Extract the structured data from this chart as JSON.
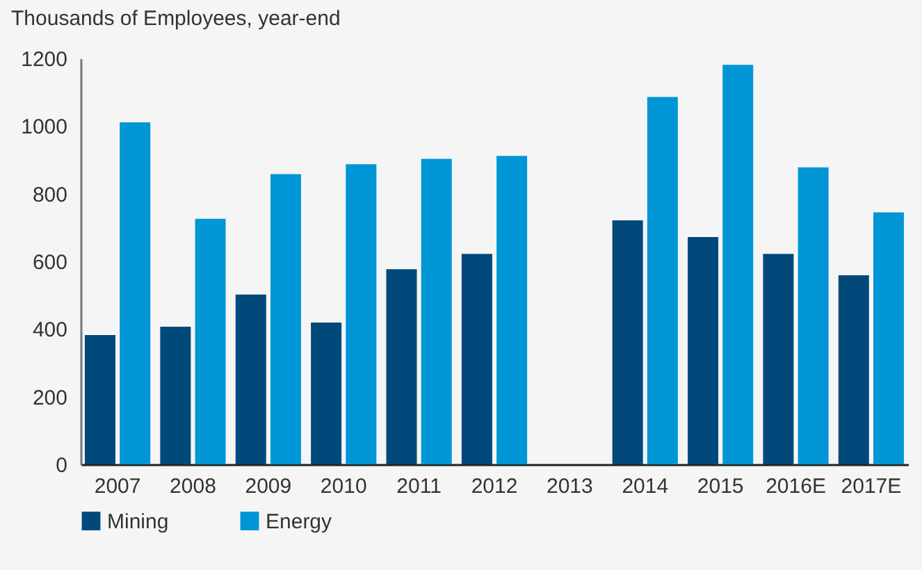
{
  "chart_data": {
    "type": "bar",
    "title": "Thousands of Employees, year-end",
    "categories": [
      "2007",
      "2008",
      "2009",
      "2010",
      "2011",
      "2012",
      "2013",
      "2014",
      "2015",
      "2016E",
      "2017E"
    ],
    "series": [
      {
        "name": "Mining",
        "color": "#00497a",
        "values": [
          382,
          407,
          502,
          419,
          577,
          622,
          null,
          721,
          672,
          622,
          559
        ]
      },
      {
        "name": "Energy",
        "color": "#0096d6",
        "values": [
          1011,
          726,
          858,
          887,
          903,
          912,
          null,
          1086,
          1181,
          878,
          745
        ]
      }
    ],
    "ylim": [
      0,
      1200
    ],
    "yticks": [
      0,
      200,
      400,
      600,
      800,
      1000,
      1200
    ],
    "grid": false,
    "legend": "bottom"
  }
}
